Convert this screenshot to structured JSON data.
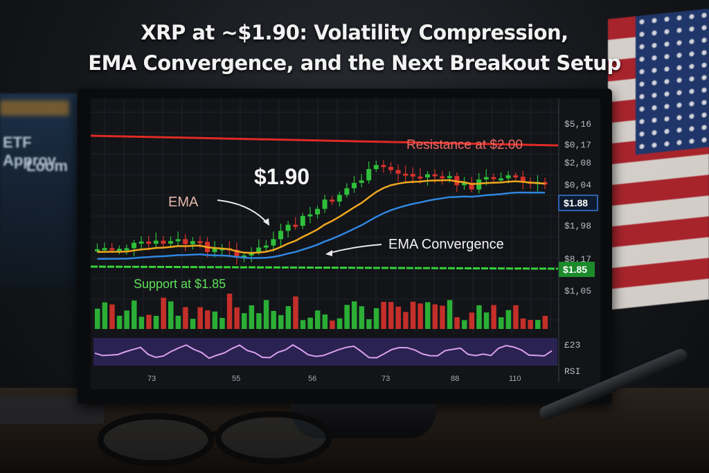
{
  "headline": {
    "line1": "XRP at ~$1.90: Volatility Compression,",
    "line2": "EMA Convergence, and the Next Breakout Setup"
  },
  "background_screen": {
    "line1": "ETF Approv",
    "line2": "Loom"
  },
  "chart_data": {
    "type": "candlestick",
    "price_callout": "$1.90",
    "annotations": {
      "resistance": "Resistance at $2.00",
      "support": "Support at $1.85",
      "ema": "EMA",
      "ema_convergence": "EMA Convergence"
    },
    "y_axis_labels": [
      "$5,16",
      "$0,17",
      "$2,08",
      "$0,04",
      "$1,88",
      "$1,98",
      "$8,17",
      "$1,85",
      "$1,05"
    ],
    "price_tags": {
      "current": "$1.88",
      "support": "$1.85"
    },
    "x_axis_labels": [
      "73",
      "55",
      "56",
      "73",
      "88",
      "110"
    ],
    "rsi_labels": {
      "top": "£23",
      "bottom": "RSI"
    },
    "colors": {
      "up": "#2fbf3a",
      "down": "#d8322b",
      "resistance": "#e02a24",
      "support": "#35d33a",
      "ema_fast": "#f0a820",
      "ema_slow": "#2f86e0",
      "rsi_band": "#3a2a6a",
      "rsi_line": "#d9a0f0"
    }
  }
}
